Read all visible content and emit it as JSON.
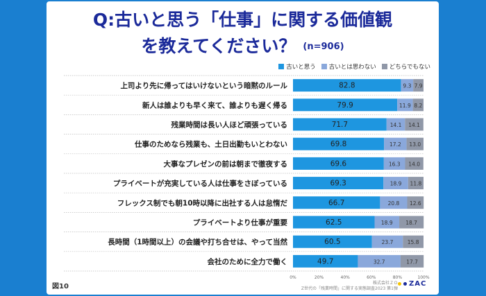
{
  "title_line1": "Q:古いと思う「仕事」に関する価値観",
  "title_line2": "を教えてください？",
  "n_label": "(n=906)",
  "figure_label": "図10",
  "source_line1": "株式会社ＺＯ",
  "source_line2": "Z世代の「残業時間」に関する実態調査2023 第1弾",
  "logo_text": "ZAC",
  "colors": {
    "series1": "#1e96e0",
    "series2": "#8aa8db",
    "series3": "#9098a8",
    "title": "#1b2a9a",
    "frame": "#1a7fd0"
  },
  "chart_data": {
    "type": "bar",
    "orientation": "horizontal",
    "stacked": true,
    "categories": [
      "上司より先に帰ってはいけないという暗黙のルール",
      "新人は誰よりも早く来て、誰よりも遅く帰る",
      "残業時間は長い人ほど頑張っている",
      "仕事のためなら残業も、土日出勤もいとわない",
      "大事なプレゼンの前は朝まで徹夜する",
      "プライベートが充実している人は仕事をさぼっている",
      "フレックス制でも朝10時以降に出社する人は怠惰だ",
      "プライベートより仕事が重要",
      "長時間（1時間以上）の会議や打ち合せは、やって当然",
      "会社のために全力で働く"
    ],
    "series": [
      {
        "name": "古いと思う",
        "values": [
          82.8,
          79.9,
          71.7,
          69.8,
          69.6,
          69.3,
          66.7,
          62.5,
          60.5,
          49.7
        ]
      },
      {
        "name": "古いとは思わない",
        "values": [
          9.3,
          11.9,
          14.1,
          17.2,
          16.3,
          18.9,
          20.8,
          18.9,
          23.7,
          32.7
        ]
      },
      {
        "name": "どちらでもない",
        "values": [
          7.9,
          8.2,
          14.1,
          13.0,
          14.0,
          11.8,
          12.6,
          18.7,
          15.8,
          17.7
        ]
      }
    ],
    "x_ticks": [
      "0%",
      "20%",
      "40%",
      "60%",
      "80%",
      "100%"
    ],
    "xlim": [
      0,
      100
    ],
    "legend": "top-right"
  }
}
